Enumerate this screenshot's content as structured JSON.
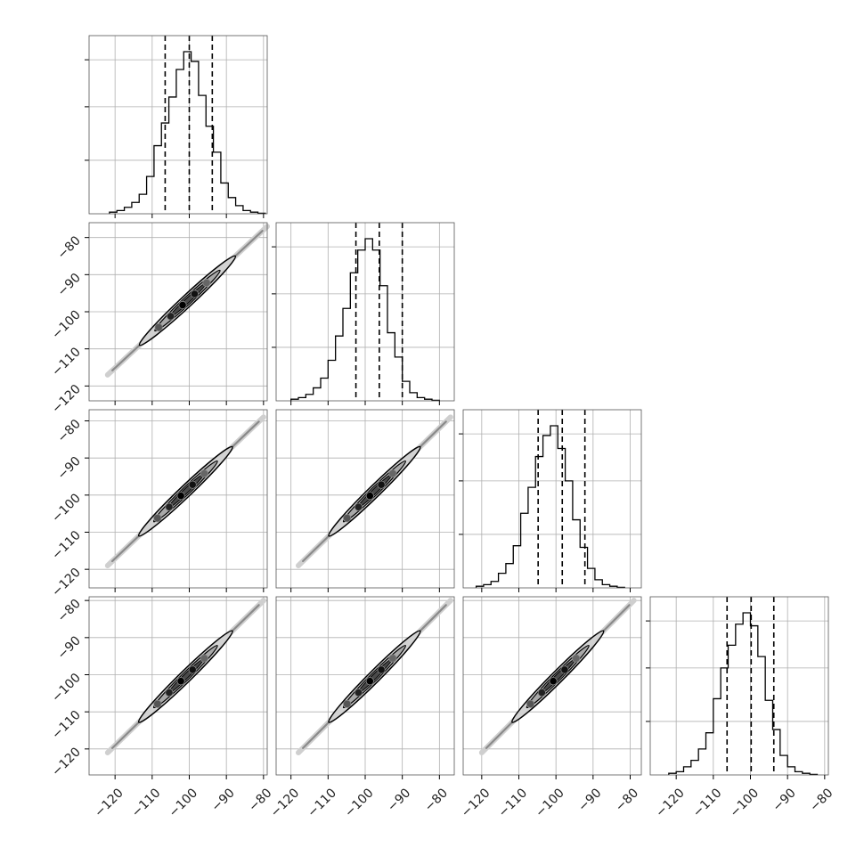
{
  "chart_data": {
    "type": "corner",
    "n_params": 4,
    "grid": true,
    "tick_values": [
      -120,
      -110,
      -100,
      -90,
      -80
    ],
    "tick_labels": [
      "−120",
      "−110",
      "−100",
      "−90",
      "−80"
    ],
    "parameters": [
      {
        "xlim": [
          -127,
          -79
        ],
        "quantiles": [
          -106.5,
          -100.0,
          -93.8
        ],
        "histogram": {
          "bin_start": -121.5,
          "bin_width": 2.0,
          "counts": [
            0.01,
            0.02,
            0.04,
            0.07,
            0.12,
            0.23,
            0.42,
            0.56,
            0.72,
            0.89,
            1.0,
            0.94,
            0.73,
            0.54,
            0.38,
            0.19,
            0.1,
            0.05,
            0.02,
            0.01,
            0.003
          ]
        }
      },
      {
        "xlim": [
          -124,
          -76
        ],
        "quantiles": [
          -102.5,
          -96.2,
          -90.0
        ],
        "histogram": {
          "bin_start": -120.0,
          "bin_width": 2.0,
          "counts": [
            0.01,
            0.02,
            0.04,
            0.08,
            0.14,
            0.25,
            0.4,
            0.57,
            0.79,
            0.93,
            1.0,
            0.93,
            0.71,
            0.42,
            0.27,
            0.12,
            0.05,
            0.02,
            0.01,
            0.003
          ]
        }
      },
      {
        "xlim": [
          -125,
          -77
        ],
        "quantiles": [
          -104.8,
          -98.3,
          -92.2
        ],
        "histogram": {
          "bin_start": -121.5,
          "bin_width": 2.0,
          "counts": [
            0.01,
            0.02,
            0.04,
            0.09,
            0.15,
            0.26,
            0.46,
            0.62,
            0.81,
            0.94,
            1.0,
            0.86,
            0.66,
            0.42,
            0.25,
            0.12,
            0.05,
            0.02,
            0.01,
            0.003
          ]
        }
      },
      {
        "xlim": [
          -127,
          -79
        ],
        "quantiles": [
          -106.3,
          -99.8,
          -93.7
        ],
        "histogram": {
          "bin_start": -122.0,
          "bin_width": 2.0,
          "counts": [
            0.01,
            0.02,
            0.05,
            0.09,
            0.16,
            0.26,
            0.47,
            0.66,
            0.8,
            0.93,
            1.0,
            0.92,
            0.73,
            0.46,
            0.28,
            0.12,
            0.05,
            0.02,
            0.01,
            0.003
          ]
        }
      }
    ],
    "pairs": [
      {
        "row": 1,
        "col": 0,
        "ylim": [
          -124,
          -76
        ],
        "line_start": [
          -122,
          -117
        ],
        "line_end": [
          -79,
          -77
        ]
      },
      {
        "row": 2,
        "col": 0,
        "ylim": [
          -125,
          -77
        ],
        "line_start": [
          -122,
          -119
        ],
        "line_end": [
          -80,
          -79
        ]
      },
      {
        "row": 2,
        "col": 1,
        "ylim": [
          -125,
          -77
        ],
        "line_start": [
          -118,
          -119
        ],
        "line_end": [
          -77,
          -79
        ]
      },
      {
        "row": 3,
        "col": 0,
        "ylim": [
          -127,
          -79
        ],
        "line_start": [
          -122,
          -121
        ],
        "line_end": [
          -80,
          -80
        ]
      },
      {
        "row": 3,
        "col": 1,
        "ylim": [
          -127,
          -79
        ],
        "line_start": [
          -118,
          -121
        ],
        "line_end": [
          -77,
          -80
        ]
      },
      {
        "row": 3,
        "col": 2,
        "ylim": [
          -127,
          -79
        ],
        "line_start": [
          -120,
          -121
        ],
        "line_end": [
          -79,
          -80
        ]
      }
    ]
  }
}
